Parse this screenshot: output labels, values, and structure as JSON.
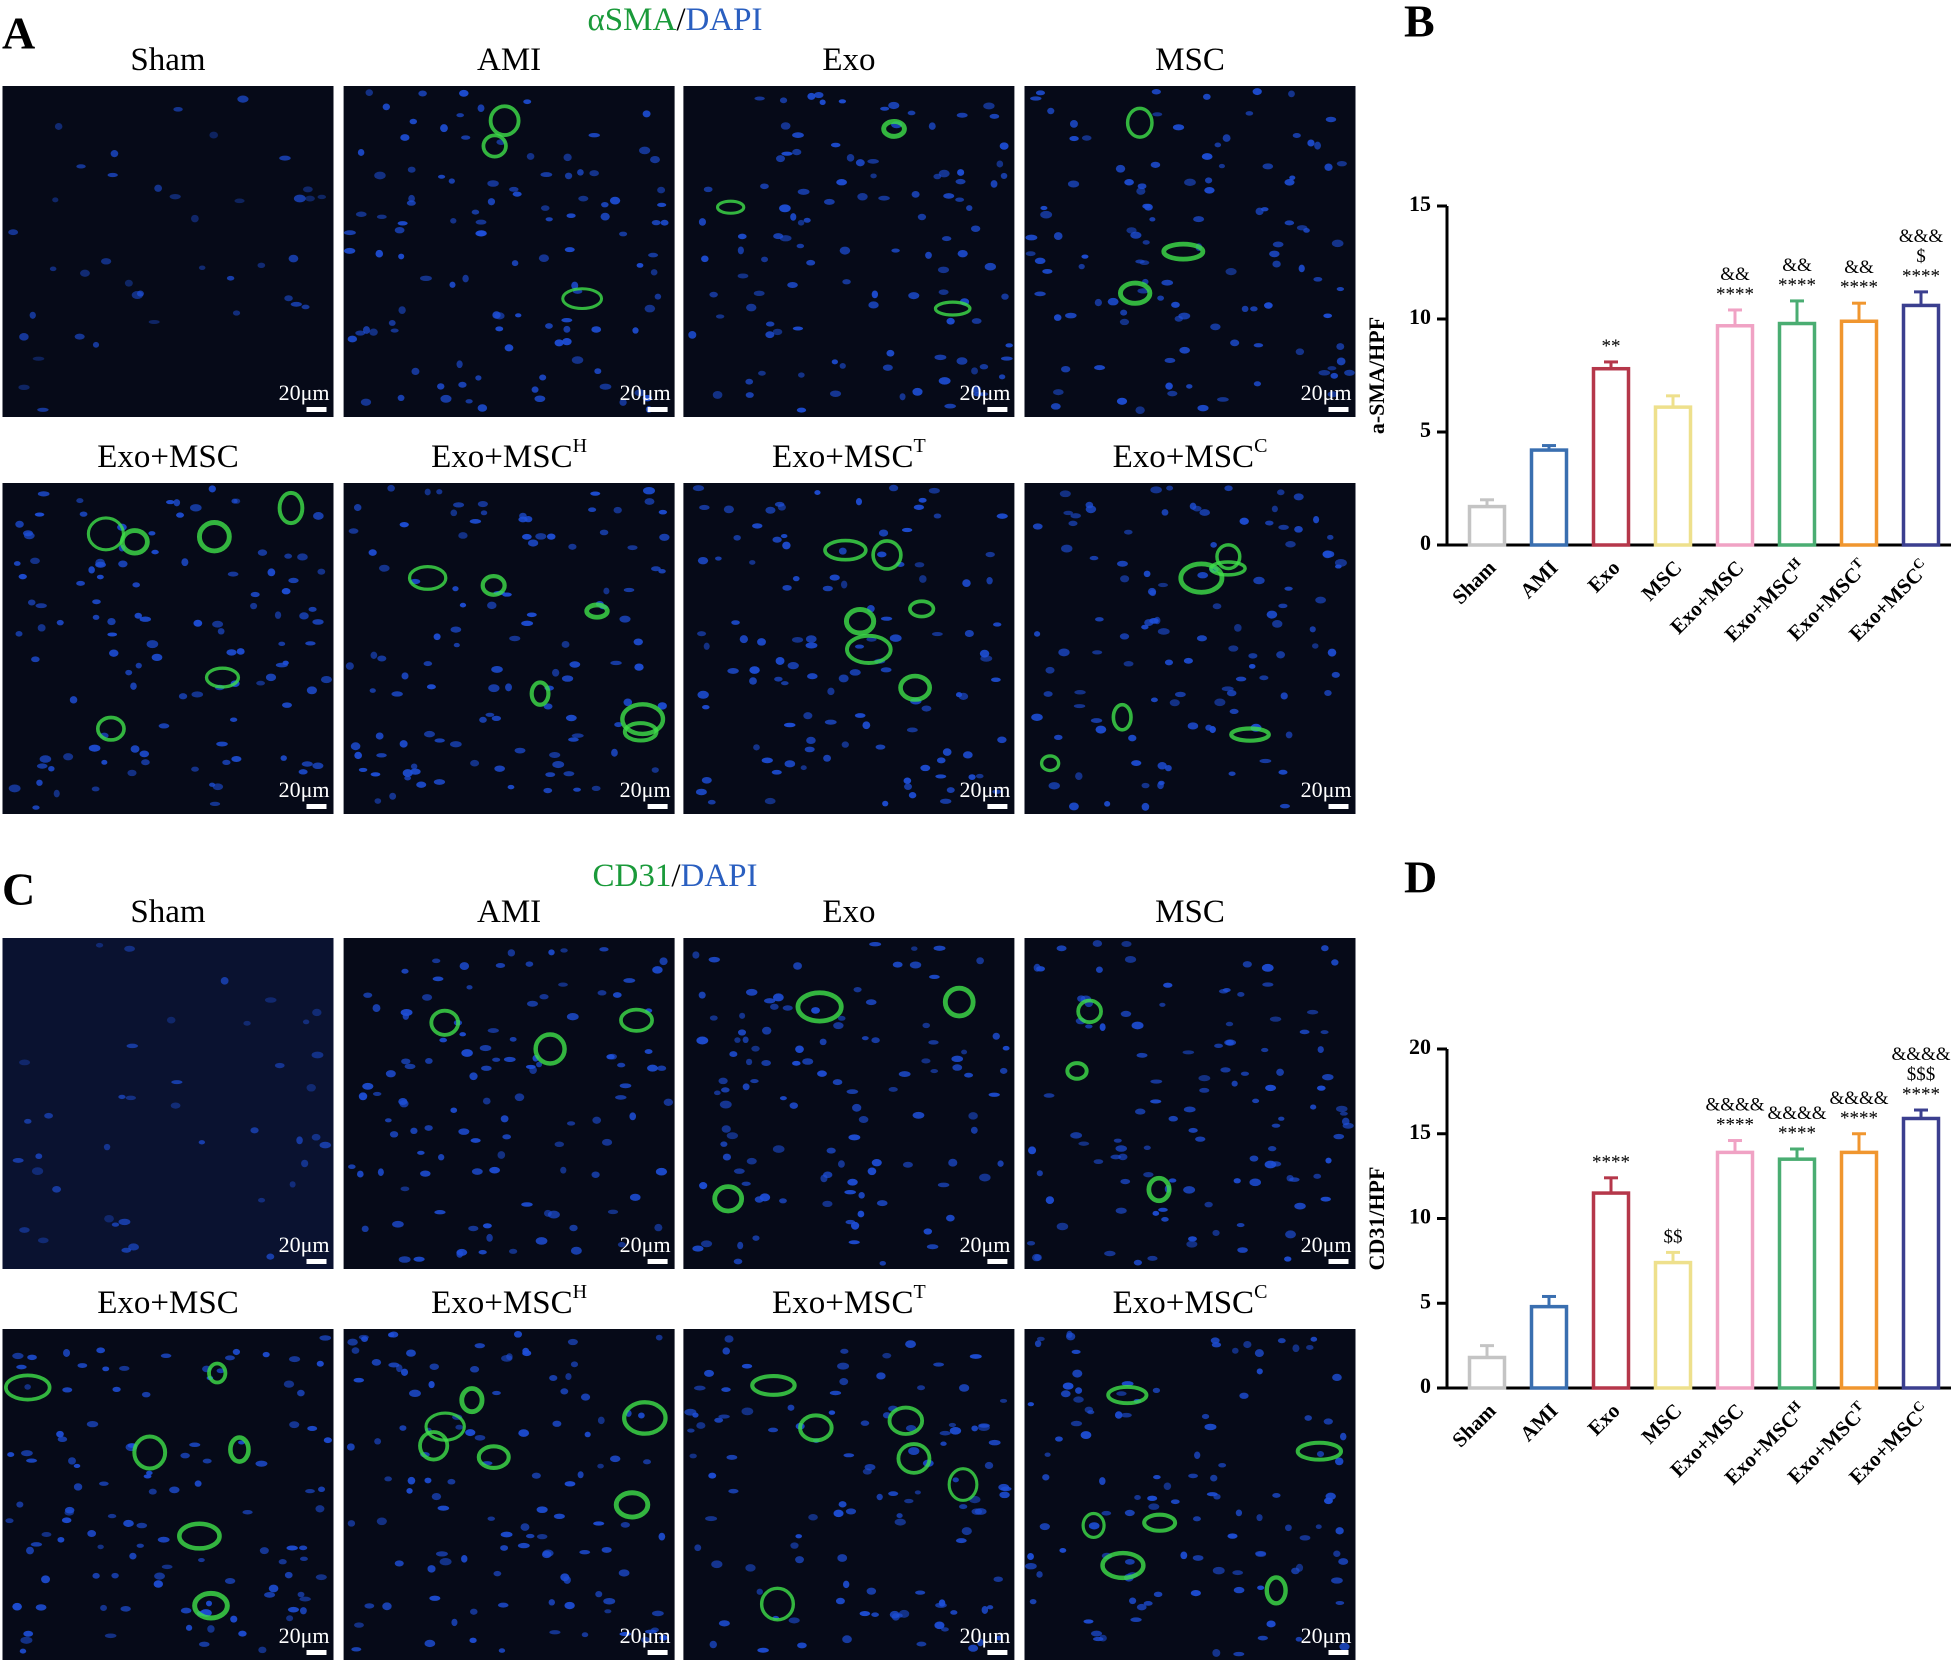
{
  "panel_a": {
    "letter": "A",
    "stain": {
      "marker": "αSMA",
      "separator": "/",
      "counterstain": "DAPI"
    },
    "images": [
      {
        "label": "Sham",
        "scale_bar": "20μm"
      },
      {
        "label": "AMI",
        "scale_bar": "20μm"
      },
      {
        "label": "Exo",
        "scale_bar": "20μm"
      },
      {
        "label": "MSC",
        "scale_bar": "20μm"
      },
      {
        "label": "Exo+MSC",
        "scale_bar": "20μm"
      },
      {
        "label": "Exo+MSC",
        "label_sup": "H",
        "scale_bar": "20μm"
      },
      {
        "label": "Exo+MSC",
        "label_sup": "T",
        "scale_bar": "20μm"
      },
      {
        "label": "Exo+MSC",
        "label_sup": "C",
        "scale_bar": "20μm"
      }
    ]
  },
  "panel_c": {
    "letter": "C",
    "stain": {
      "marker": "CD31",
      "separator": "/",
      "counterstain": "DAPI"
    },
    "images": [
      {
        "label": "Sham",
        "scale_bar": "20μm"
      },
      {
        "label": "AMI",
        "scale_bar": "20μm"
      },
      {
        "label": "Exo",
        "scale_bar": "20μm"
      },
      {
        "label": "MSC",
        "scale_bar": "20μm"
      },
      {
        "label": "Exo+MSC",
        "scale_bar": "20μm"
      },
      {
        "label": "Exo+MSC",
        "label_sup": "H",
        "scale_bar": "20μm"
      },
      {
        "label": "Exo+MSC",
        "label_sup": "T",
        "scale_bar": "20μm"
      },
      {
        "label": "Exo+MSC",
        "label_sup": "C",
        "scale_bar": "20μm"
      }
    ]
  },
  "chart_data": [
    {
      "type": "bar",
      "panel_label": "B",
      "ylabel": "a-SMA/HPF",
      "categories": [
        "Sham",
        "AMI",
        "Exo",
        "MSC",
        "Exo+MSC",
        "Exo+MSC",
        "Exo+MSC",
        "Exo+MSC"
      ],
      "category_superscripts": [
        null,
        null,
        null,
        null,
        null,
        "H",
        "T",
        "C"
      ],
      "values": [
        1.7,
        4.2,
        7.8,
        6.1,
        9.7,
        9.8,
        9.9,
        10.6
      ],
      "errors": [
        0.3,
        0.2,
        0.3,
        0.5,
        0.7,
        1.0,
        0.8,
        0.6
      ],
      "colors": [
        "#c4c4c4",
        "#3a6fb0",
        "#b5374a",
        "#eee08c",
        "#f0a2c4",
        "#4aad72",
        "#f0962f",
        "#3b3f8f"
      ],
      "annotations": [
        [],
        [],
        [
          "**"
        ],
        [],
        [
          "&&",
          "****"
        ],
        [
          "&&",
          "****"
        ],
        [
          "&&",
          "****"
        ],
        [
          "&&&",
          "$",
          "****"
        ]
      ],
      "ylim": [
        0,
        15
      ],
      "yticks": [
        0,
        5,
        10,
        15
      ]
    },
    {
      "type": "bar",
      "panel_label": "D",
      "ylabel": "CD31/HPF",
      "categories": [
        "Sham",
        "AMI",
        "Exo",
        "MSC",
        "Exo+MSC",
        "Exo+MSC",
        "Exo+MSC",
        "Exo+MSC"
      ],
      "category_superscripts": [
        null,
        null,
        null,
        null,
        null,
        "H",
        "T",
        "C"
      ],
      "values": [
        1.8,
        4.8,
        11.5,
        7.4,
        13.9,
        13.5,
        13.9,
        15.9
      ],
      "errors": [
        0.7,
        0.6,
        0.9,
        0.6,
        0.7,
        0.6,
        1.1,
        0.5
      ],
      "colors": [
        "#c4c4c4",
        "#3a6fb0",
        "#b5374a",
        "#eee08c",
        "#f0a2c4",
        "#4aad72",
        "#f0962f",
        "#3b3f8f"
      ],
      "annotations": [
        [],
        [],
        [
          "****"
        ],
        [
          "$$"
        ],
        [
          "&&&&",
          "****"
        ],
        [
          "&&&&",
          "****"
        ],
        [
          "&&&&",
          "****"
        ],
        [
          "&&&&",
          "$$$",
          "****"
        ]
      ],
      "ylim": [
        0,
        20
      ],
      "yticks": [
        0,
        5,
        10,
        15,
        20
      ]
    }
  ]
}
